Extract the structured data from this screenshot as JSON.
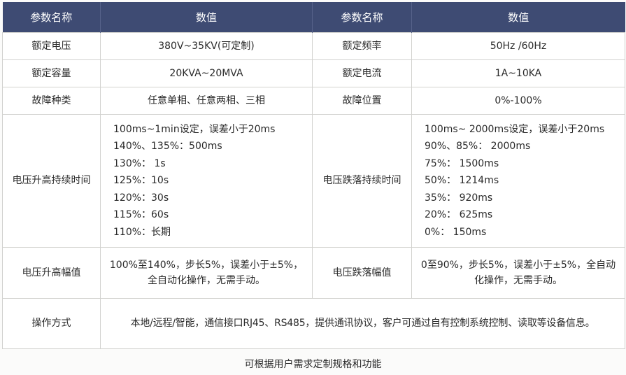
{
  "colors": {
    "header_bg": "#3e4b73",
    "header_text": "#ffffff",
    "border": "#d2d2cf",
    "text": "#2a2a2a"
  },
  "table": {
    "headers": [
      "参数名称",
      "数值",
      "参数名称",
      "数值"
    ],
    "rows": [
      {
        "left_label": "额定电压",
        "left_value": "380V~35KV(可定制)",
        "right_label": "额定频率",
        "right_value": "50Hz /60Hz"
      },
      {
        "left_label": "额定容量",
        "left_value": "20KVA~20MVA",
        "right_label": "额定电流",
        "right_value": "1A~10KA"
      },
      {
        "left_label": "故障种类",
        "left_value": "任意单相、任意两相、三相",
        "right_label": "故障位置",
        "right_value": "0%-100%"
      }
    ],
    "duration_row": {
      "left_label": "电压升高持续时间",
      "left_lines": [
        "100ms~1min设定，误差小于20ms",
        "140%、135%：500ms",
        "130%： 1s",
        "125%：10s",
        "120%：30s",
        "115%：60s",
        "110%：长期"
      ],
      "right_label": "电压跌落持续时间",
      "right_lines": [
        "100ms~ 2000ms设定，误差小于20ms",
        "90%、85%： 2000ms",
        "75%： 1500ms",
        "50%： 1214ms",
        "35%： 920ms",
        "20%： 625ms",
        "0%：  150ms"
      ]
    },
    "amplitude_row": {
      "left_label": "电压升高幅值",
      "left_value": "100%至140%，步长5%，误差小于±5%，全自动化操作，无需手动。",
      "right_label": "电压跌落幅值",
      "right_value": "0至90%，步长5%，误差小于±5%，全自动化操作，无需手动。"
    },
    "ops_row": {
      "label": "操作方式",
      "value": "本地/远程/智能，通信接口RJ45、RS485，提供通讯协议，客户可通过自有控制系统控制、读取等设备信息。"
    }
  },
  "footer": {
    "note": "可根据用户需求定制规格和功能"
  }
}
